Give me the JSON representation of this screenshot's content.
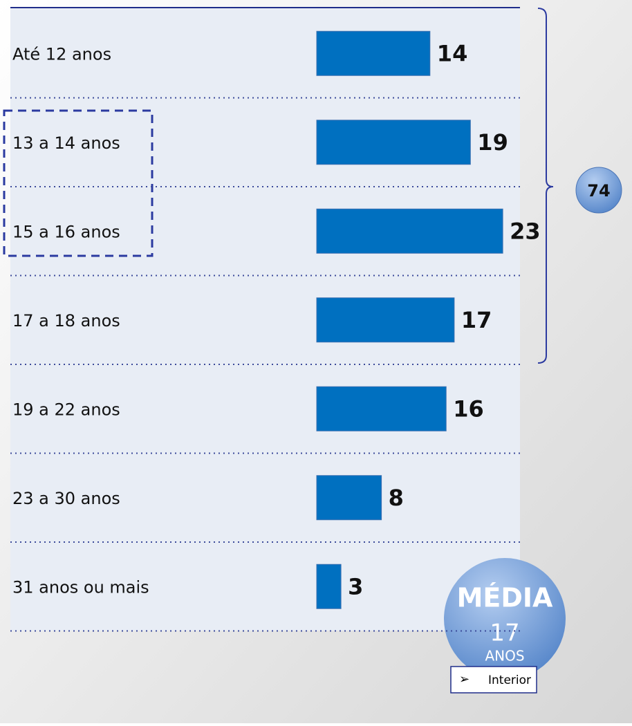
{
  "chart_data": {
    "type": "bar",
    "categories": [
      "Até 12 anos",
      "13 a 14 anos",
      "15 a 16 anos",
      "17 a 18 anos",
      "19 a 22 anos",
      "23 a 30 anos",
      "31 anos ou mais"
    ],
    "series": [
      {
        "name": "Interior",
        "color": "#0070c0",
        "values": [
          14,
          19,
          23,
          17,
          16,
          8,
          3
        ]
      }
    ],
    "annotations": [
      "74",
      "MÉDIA",
      "17",
      "ANOS"
    ]
  }
}
